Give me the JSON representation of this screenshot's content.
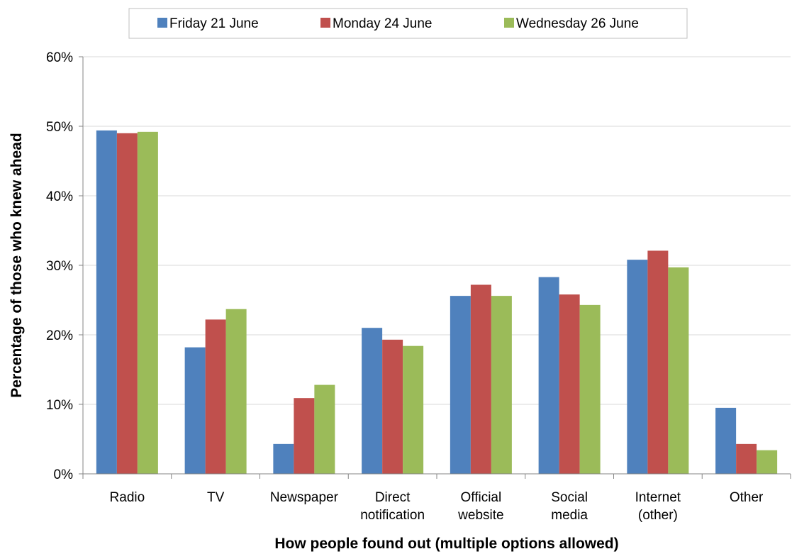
{
  "chart_data": {
    "type": "bar",
    "title": "",
    "xlabel": "How people found out (multiple options allowed)",
    "ylabel": "Percentage of those who knew ahead",
    "ylim": [
      0,
      60
    ],
    "yticks": [
      "0%",
      "10%",
      "20%",
      "30%",
      "40%",
      "50%",
      "60%"
    ],
    "grid": true,
    "legend_position": "top",
    "categories": [
      [
        "Radio"
      ],
      [
        "TV"
      ],
      [
        "Newspaper"
      ],
      [
        "Direct",
        "notification"
      ],
      [
        "Official",
        "website"
      ],
      [
        "Social",
        "media"
      ],
      [
        "Internet",
        "(other)"
      ],
      [
        "Other"
      ]
    ],
    "series": [
      {
        "name": "Friday 21 June",
        "color": "#4f81bd",
        "values": [
          49.4,
          18.2,
          4.3,
          21.0,
          25.6,
          28.3,
          30.8,
          9.5
        ]
      },
      {
        "name": "Monday 24 June",
        "color": "#c0504d",
        "values": [
          49.0,
          22.2,
          10.9,
          19.3,
          27.2,
          25.8,
          32.1,
          4.3
        ]
      },
      {
        "name": "Wednesday 26 June",
        "color": "#9bbb59",
        "values": [
          49.2,
          23.7,
          12.8,
          18.4,
          25.6,
          24.3,
          29.7,
          3.4
        ]
      }
    ]
  }
}
